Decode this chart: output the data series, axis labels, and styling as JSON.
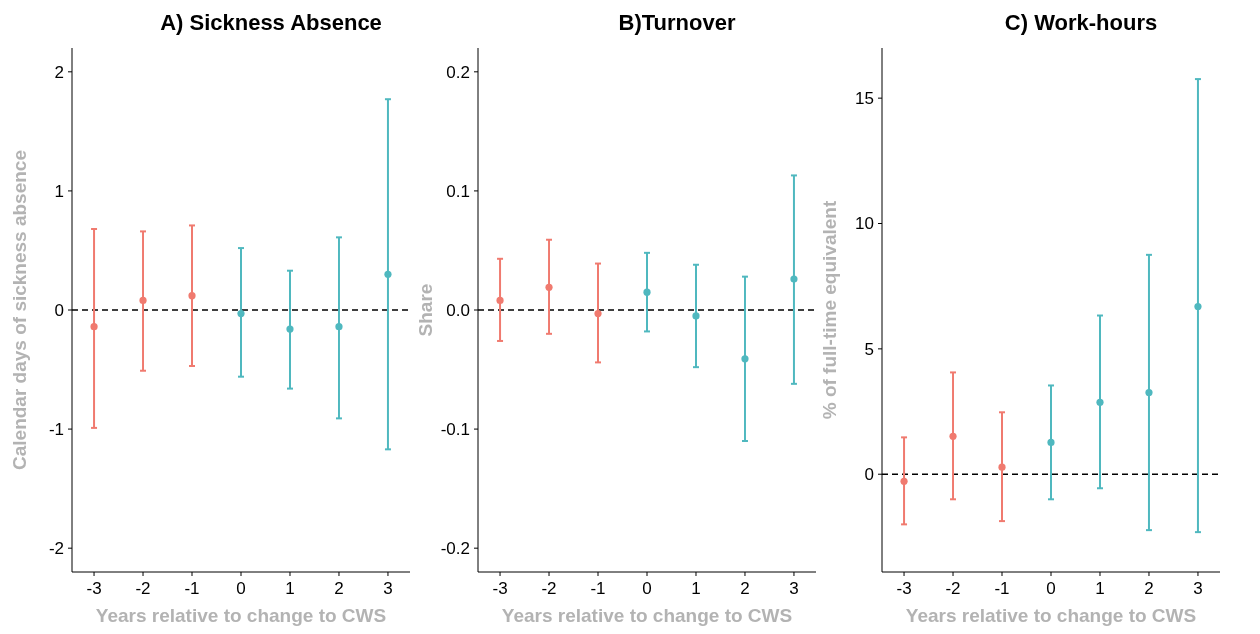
{
  "chart_data": [
    {
      "type": "scatter",
      "title": "A) Sickness Absence",
      "xlabel": "Years relative to change to CWS",
      "ylabel": "Calendar days of sickness absence",
      "categories": [
        "-3",
        "-2",
        "-1",
        "0",
        "1",
        "2",
        "3"
      ],
      "ylim": [
        -2.2,
        2.2
      ],
      "yticks": [
        -2,
        -1,
        0,
        1,
        2
      ],
      "grid": false,
      "marker": "circle",
      "ref_lines": [
        {
          "axis": "y",
          "value": 0,
          "color": "#000000",
          "line_style": "dashed"
        }
      ],
      "series": [
        {
          "color": "#f07a6f",
          "values": [
            -0.14,
            0.08,
            0.12,
            null,
            null,
            null,
            null
          ],
          "errors": [
            [
              -0.99,
              0.68
            ],
            [
              -0.51,
              0.66
            ],
            [
              -0.47,
              0.71
            ],
            null,
            null,
            null,
            null
          ]
        },
        {
          "color": "#4fb8bf",
          "values": [
            null,
            null,
            null,
            -0.03,
            -0.16,
            -0.14,
            0.3
          ],
          "errors": [
            null,
            null,
            null,
            [
              -0.56,
              0.52
            ],
            [
              -0.66,
              0.33
            ],
            [
              -0.91,
              0.61
            ],
            [
              -1.17,
              1.77
            ]
          ]
        }
      ]
    },
    {
      "type": "scatter",
      "title": "B)Turnover",
      "xlabel": "Years relative to change to CWS",
      "ylabel": "Share",
      "categories": [
        "-3",
        "-2",
        "-1",
        "0",
        "1",
        "2",
        "3"
      ],
      "ylim": [
        -0.22,
        0.22
      ],
      "yticks": [
        -0.2,
        -0.1,
        {
          "value": 0,
          "label": "0.0"
        },
        0.1,
        0.2
      ],
      "grid": false,
      "marker": "circle",
      "ref_lines": [
        {
          "axis": "y",
          "value": 0,
          "color": "#000000",
          "line_style": "dashed"
        }
      ],
      "series": [
        {
          "color": "#f07a6f",
          "values": [
            0.008,
            0.019,
            -0.003,
            null,
            null,
            null,
            null
          ],
          "errors": [
            [
              -0.026,
              0.043
            ],
            [
              -0.02,
              0.059
            ],
            [
              -0.044,
              0.039
            ],
            null,
            null,
            null,
            null
          ]
        },
        {
          "color": "#4fb8bf",
          "values": [
            null,
            null,
            null,
            0.015,
            -0.005,
            -0.041,
            0.026
          ],
          "errors": [
            null,
            null,
            null,
            [
              -0.018,
              0.048
            ],
            [
              -0.048,
              0.038
            ],
            [
              -0.11,
              0.028
            ],
            [
              -0.062,
              0.113
            ]
          ]
        }
      ]
    },
    {
      "type": "scatter",
      "title": "C) Work-hours",
      "xlabel": "Years relative to change to CWS",
      "ylabel": "% of full-time equivalent",
      "categories": [
        "-3",
        "-2",
        "-1",
        "0",
        "1",
        "2",
        "3"
      ],
      "ylim": [
        -3.9,
        17
      ],
      "yticks": [
        0,
        5,
        10,
        15
      ],
      "grid": false,
      "marker": "circle",
      "ref_lines": [
        {
          "axis": "y",
          "value": 0,
          "color": "#000000",
          "line_style": "dashed"
        }
      ],
      "series": [
        {
          "color": "#f07a6f",
          "values": [
            -0.28,
            1.51,
            0.28,
            null,
            null,
            null,
            null
          ],
          "errors": [
            [
              -2.0,
              1.47
            ],
            [
              -1.0,
              4.06
            ],
            [
              -1.87,
              2.47
            ],
            null,
            null,
            null,
            null
          ]
        },
        {
          "color": "#4fb8bf",
          "values": [
            null,
            null,
            null,
            1.27,
            2.87,
            3.26,
            6.69
          ],
          "errors": [
            null,
            null,
            null,
            [
              -1.0,
              3.54
            ],
            [
              -0.56,
              6.33
            ],
            [
              -2.23,
              8.75
            ],
            [
              -2.31,
              15.76
            ]
          ]
        }
      ]
    }
  ]
}
